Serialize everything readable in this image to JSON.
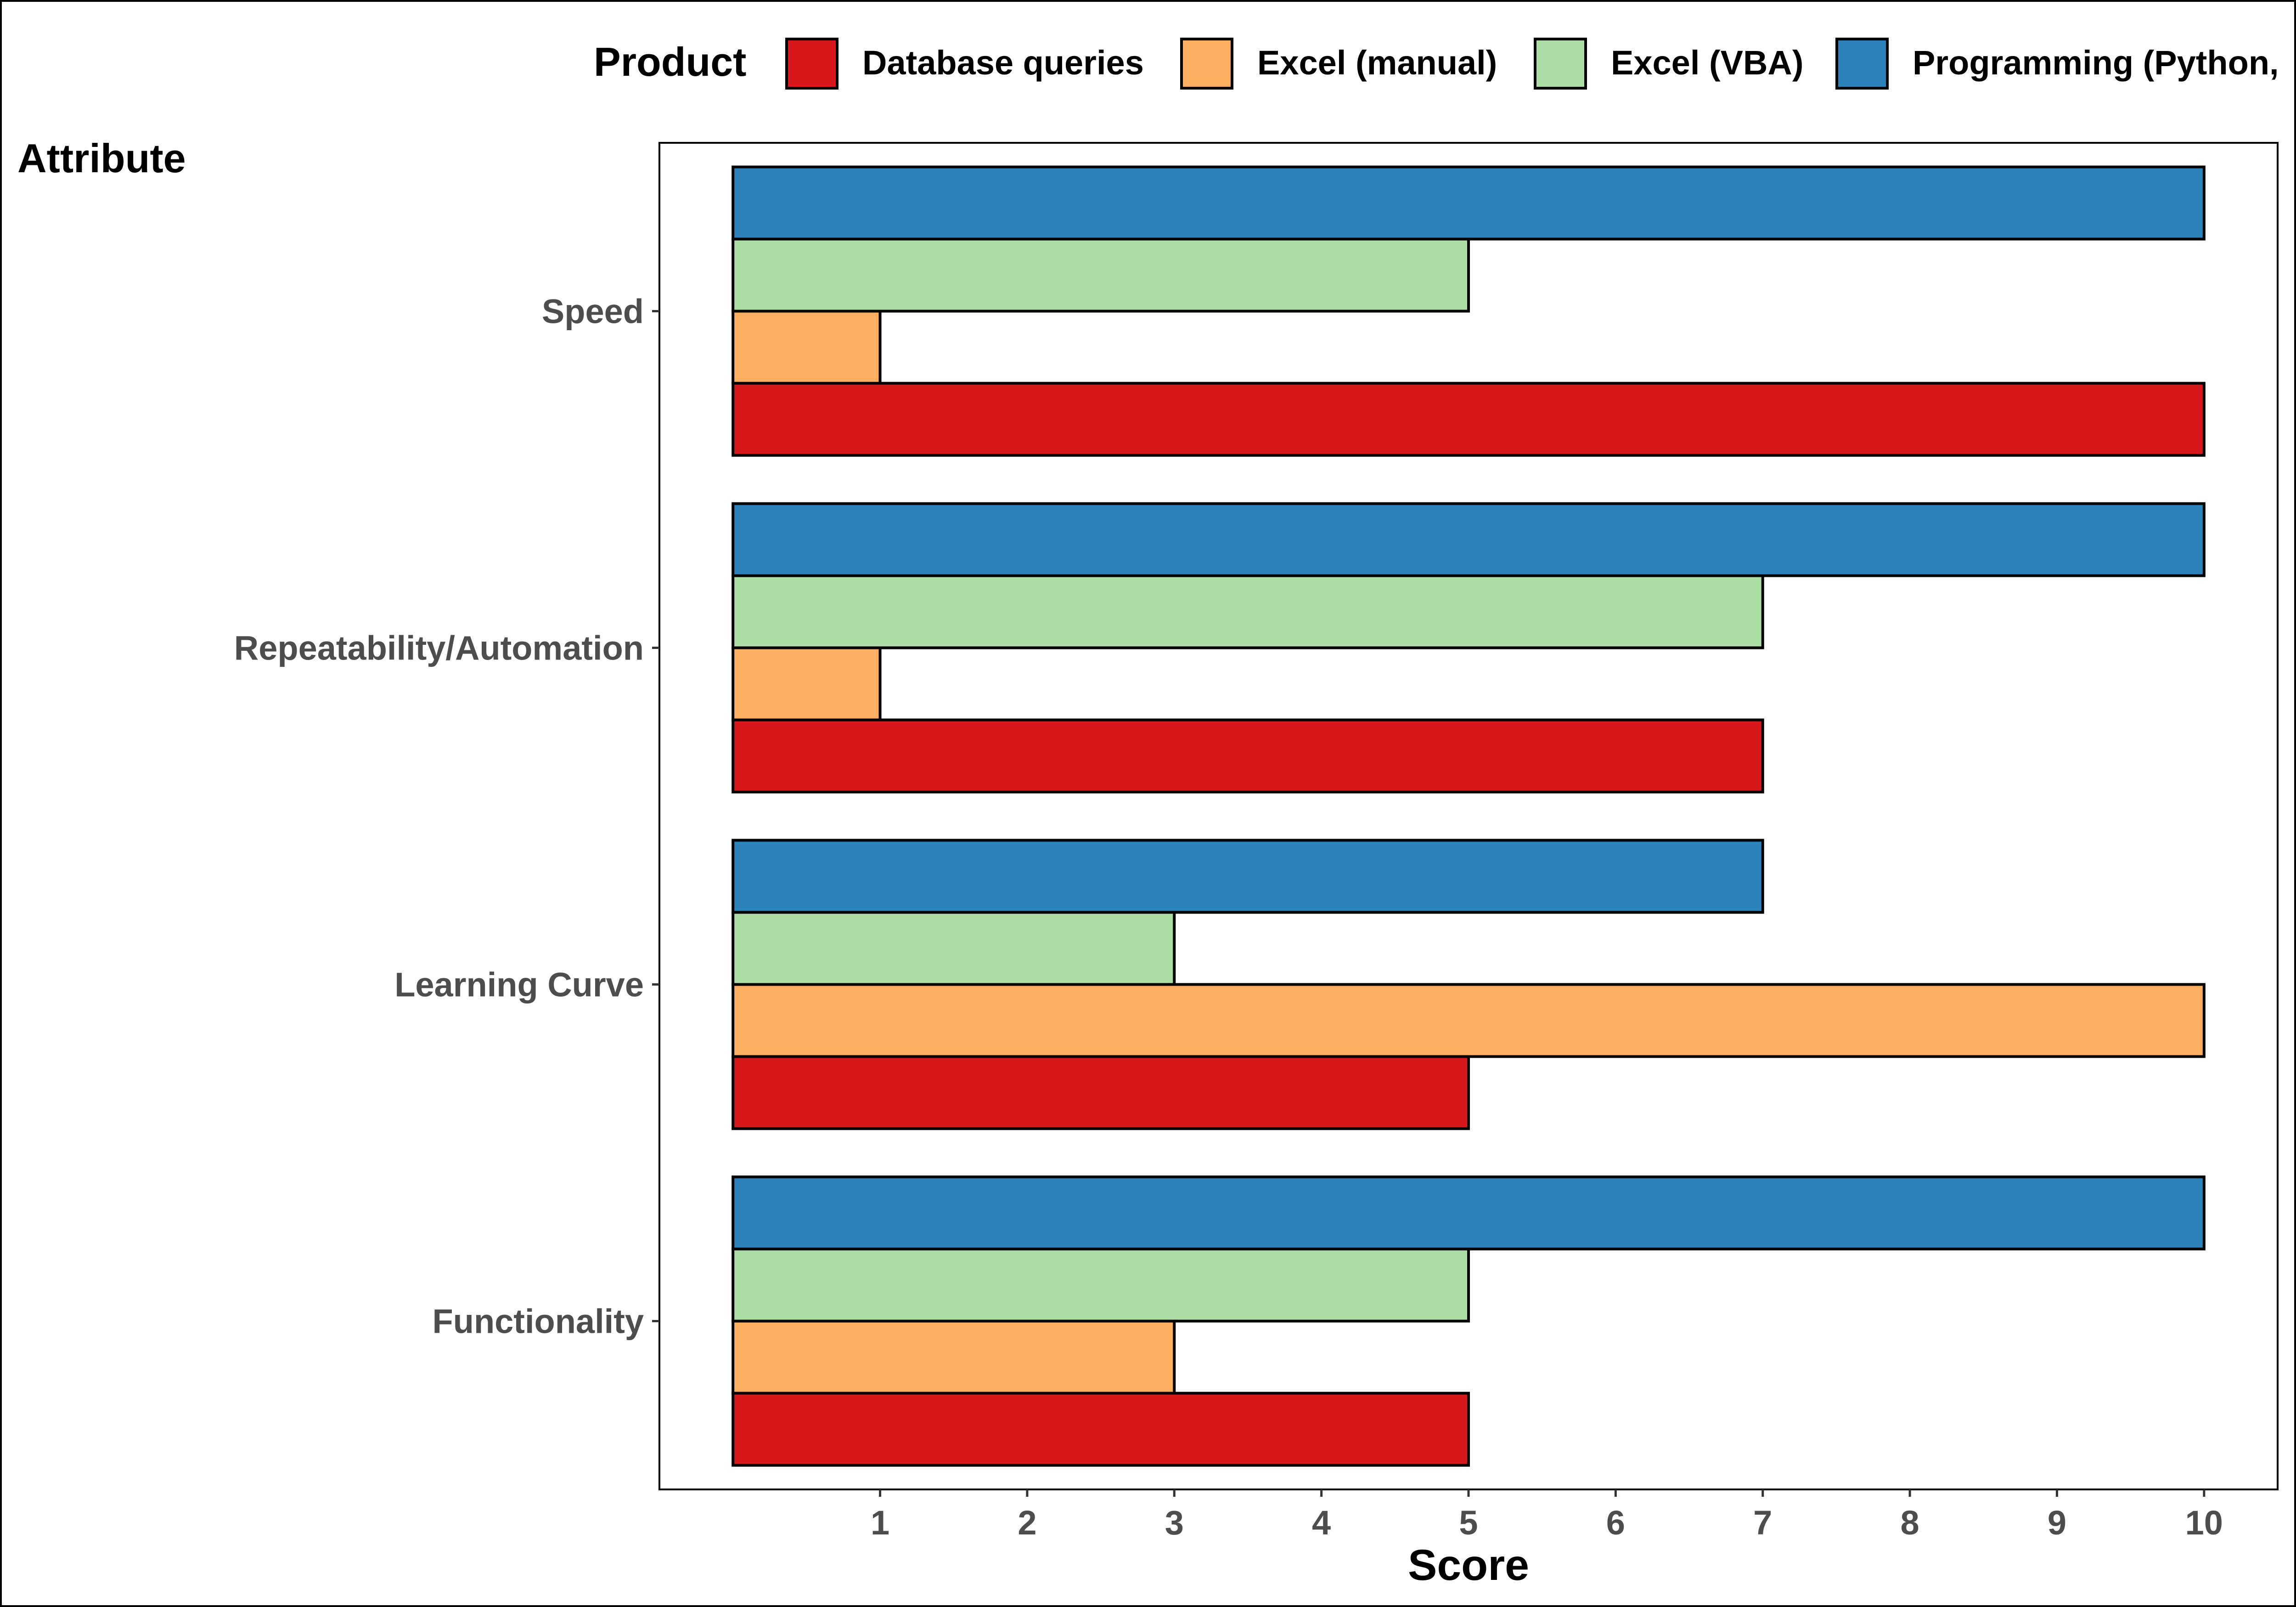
{
  "chart_data": {
    "type": "bar",
    "orientation": "horizontal",
    "legend_title": "Product",
    "legend_position": "top",
    "ylabel": "Attribute",
    "xlabel": "Score",
    "categories": [
      "Functionality",
      "Learning Curve",
      "Repeatability/Automation",
      "Speed"
    ],
    "x_ticks": [
      1,
      2,
      3,
      4,
      5,
      6,
      7,
      8,
      9,
      10
    ],
    "xlim": [
      -0.5,
      10.5
    ],
    "grid": false,
    "series": [
      {
        "name": "Database queries",
        "color": "#D7191C",
        "values": [
          5,
          5,
          7,
          10
        ]
      },
      {
        "name": "Excel (manual)",
        "color": "#FDAE61",
        "values": [
          3,
          10,
          1,
          1
        ]
      },
      {
        "name": "Excel (VBA)",
        "color": "#ABDDA4",
        "values": [
          5,
          3,
          7,
          5
        ]
      },
      {
        "name": "Programming (Python,",
        "color": "#2B83BA",
        "values": [
          10,
          7,
          10,
          10
        ]
      }
    ]
  }
}
